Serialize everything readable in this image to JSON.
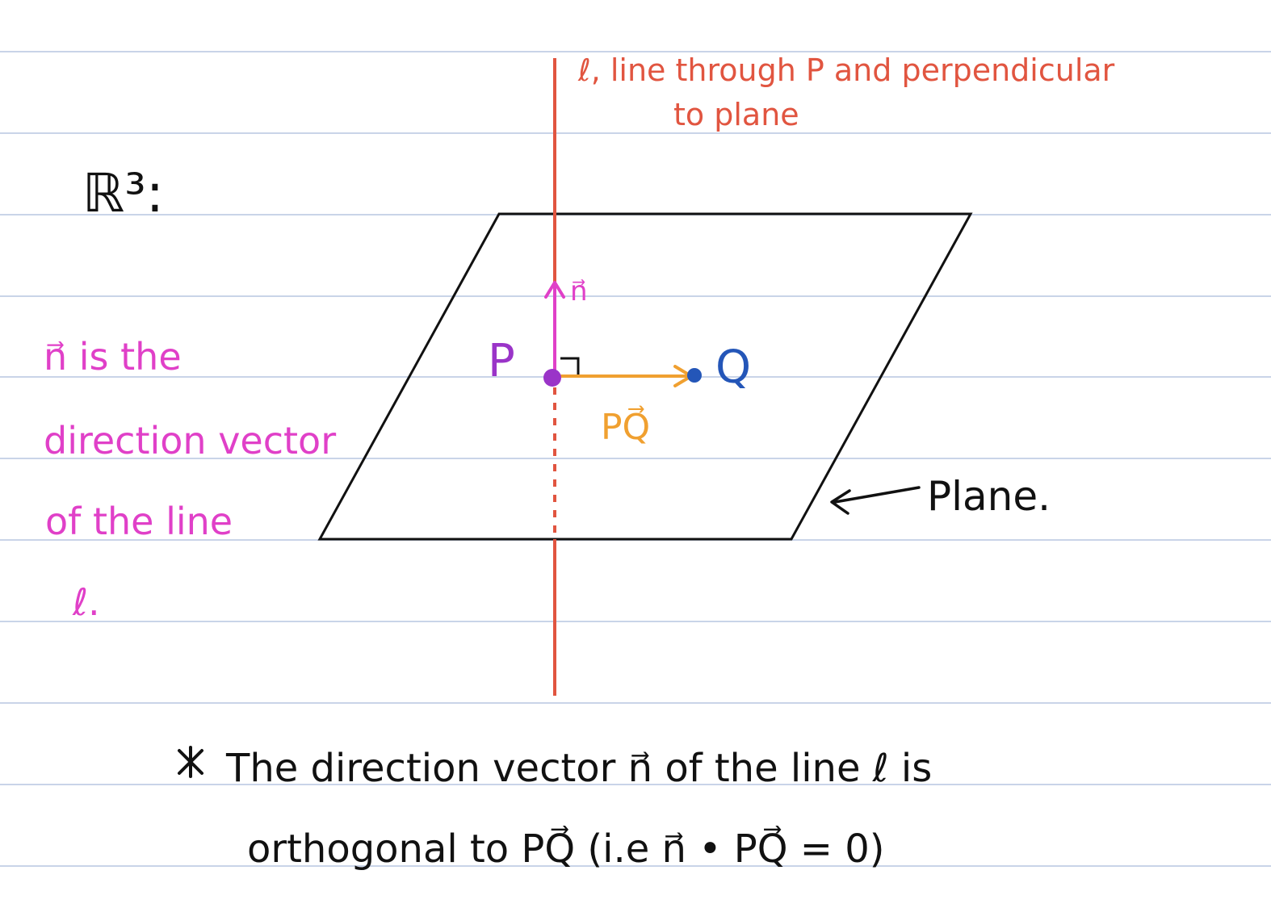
{
  "colors": {
    "paper": "#ffffff",
    "rule": "#c9d4e8",
    "line_l": "#e15540",
    "normal": "#e040c8",
    "point_p": "#9a34c8",
    "point_q": "#2456b8",
    "pq": "#f0a030",
    "ink": "#111111"
  },
  "icons": {
    "star": "asterisk-star-icon",
    "arrow": "left-arrow-icon",
    "right_angle": "right-angle-marker-icon"
  },
  "labels": {
    "space": "ℝ³:",
    "line_note_1": "ℓ, line through P and perpendicular",
    "line_note_2": "to plane",
    "normal_vec": "n⃗",
    "point_p": "P",
    "point_q": "Q",
    "pq_vec": "PQ⃗",
    "plane": "Plane.",
    "left_note_1": "n⃗  is the",
    "left_note_2": "direction vector",
    "left_note_3": "of the line",
    "left_note_4": "ℓ.",
    "bottom_note_1": "The direction vector n⃗ of the line ℓ is",
    "bottom_note_2": "orthogonal to PQ⃗ (i.e n⃗ • PQ⃗ = 0)"
  }
}
